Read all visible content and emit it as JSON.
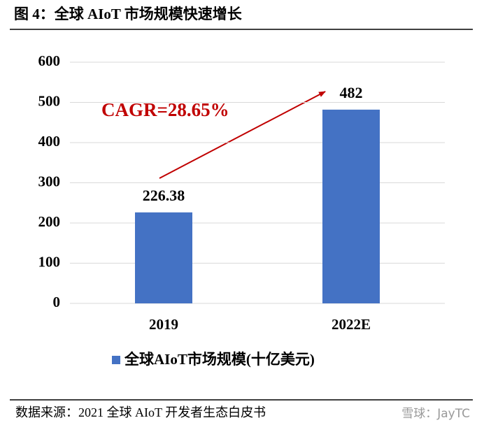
{
  "chart_data": {
    "type": "bar",
    "title": "图 4：全球 AIoT 市场规模快速增长",
    "categories": [
      "2019",
      "2022E"
    ],
    "series": [
      {
        "name": "全球AIoT市场规模(十亿美元)",
        "color": "#4472c4",
        "values": [
          226.38,
          482
        ]
      }
    ],
    "ylim": [
      0,
      600
    ],
    "yticks": [
      0,
      100,
      200,
      300,
      400,
      500,
      600
    ],
    "grid": true,
    "annotation": "CAGR=28.65%",
    "source": "数据来源：2021 全球 AIoT 开发者生态白皮书",
    "watermark": "雪球：JayTC"
  }
}
